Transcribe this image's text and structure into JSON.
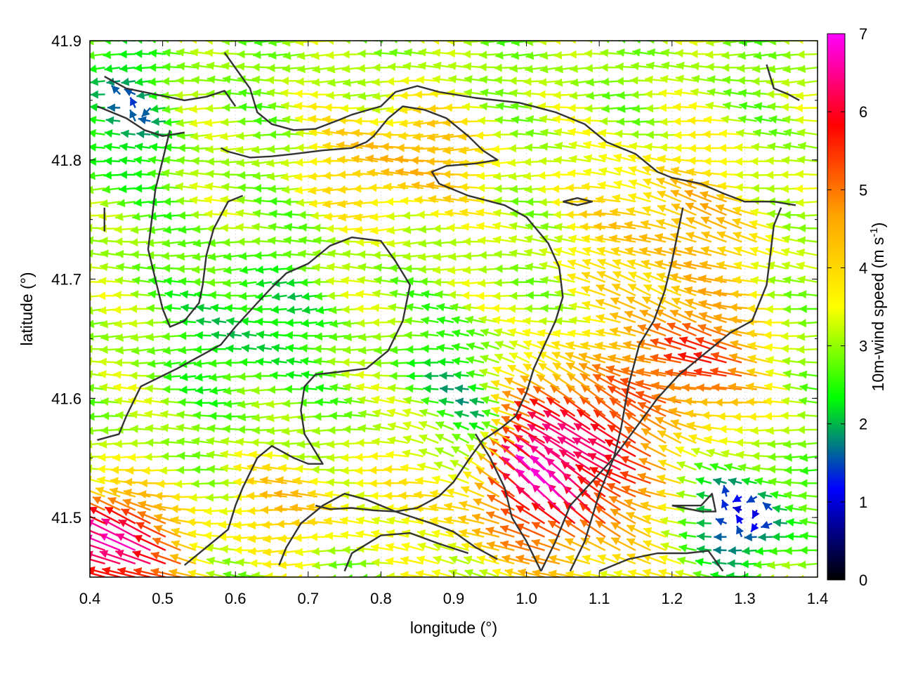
{
  "chart_data": {
    "type": "vector-field",
    "xlabel": "longitude (°)",
    "ylabel": "latitude (°)",
    "xlim": [
      0.4,
      1.4
    ],
    "ylim": [
      41.45,
      41.9
    ],
    "xticks": [
      "0.4",
      "0.5",
      "0.6",
      "0.7",
      "0.8",
      "0.9",
      "1.0",
      "1.1",
      "1.2",
      "1.3",
      "1.4"
    ],
    "yticks": [
      "41.5",
      "41.6",
      "41.7",
      "41.8",
      "41.9"
    ],
    "grid": true,
    "colorbar": {
      "label_main": "10m-wind speed (m s",
      "label_sup": "-1",
      "label_end": ")",
      "range": [
        0,
        7
      ],
      "ticks": [
        "0",
        "1",
        "2",
        "3",
        "4",
        "5",
        "6",
        "7"
      ],
      "colors": [
        "#000000",
        "#0000ff",
        "#00ff00",
        "#ffff00",
        "#ffa500",
        "#ff0000",
        "#ff00ff"
      ]
    },
    "contour_color": "#333333",
    "contours": [
      [
        [
          0.42,
          41.87
        ],
        [
          0.45,
          41.86
        ],
        [
          0.49,
          41.855
        ],
        [
          0.53,
          41.85
        ],
        [
          0.56,
          41.853
        ],
        [
          0.585,
          41.858
        ],
        [
          0.6,
          41.845
        ]
      ],
      [
        [
          0.41,
          41.845
        ],
        [
          0.45,
          41.835
        ],
        [
          0.475,
          41.825
        ],
        [
          0.5,
          41.82
        ],
        [
          0.53,
          41.823
        ]
      ],
      [
        [
          0.585,
          41.89
        ],
        [
          0.62,
          41.86
        ],
        [
          0.63,
          41.84
        ],
        [
          0.65,
          41.83
        ],
        [
          0.68,
          41.825
        ],
        [
          0.71,
          41.826
        ],
        [
          0.74,
          41.833
        ],
        [
          0.76,
          41.838
        ],
        [
          0.8,
          41.845
        ],
        [
          0.82,
          41.857
        ],
        [
          0.85,
          41.862
        ],
        [
          0.88,
          41.857
        ],
        [
          0.93,
          41.852
        ],
        [
          0.99,
          41.848
        ],
        [
          1.04,
          41.84
        ],
        [
          1.08,
          41.83
        ],
        [
          1.11,
          41.815
        ],
        [
          1.15,
          41.805
        ],
        [
          1.18,
          41.79
        ],
        [
          1.2,
          41.785
        ],
        [
          1.24,
          41.78
        ],
        [
          1.27,
          41.772
        ],
        [
          1.3,
          41.765
        ],
        [
          1.34,
          41.765
        ],
        [
          1.37,
          41.762
        ]
      ],
      [
        [
          0.58,
          41.81
        ],
        [
          0.59,
          41.807
        ],
        [
          0.62,
          41.802
        ],
        [
          0.65,
          41.803
        ],
        [
          0.68,
          41.805
        ],
        [
          0.72,
          41.808
        ],
        [
          0.76,
          41.81
        ],
        [
          0.78,
          41.815
        ],
        [
          0.79,
          41.82
        ],
        [
          0.81,
          41.835
        ],
        [
          0.83,
          41.845
        ],
        [
          0.86,
          41.842
        ],
        [
          0.89,
          41.835
        ],
        [
          0.92,
          41.82
        ],
        [
          0.94,
          41.808
        ],
        [
          0.96,
          41.8
        ],
        [
          0.93,
          41.797
        ],
        [
          0.89,
          41.795
        ],
        [
          0.87,
          41.79
        ],
        [
          0.88,
          41.78
        ],
        [
          0.92,
          41.77
        ],
        [
          0.97,
          41.762
        ],
        [
          1.0,
          41.752
        ],
        [
          1.03,
          41.73
        ],
        [
          1.045,
          41.71
        ],
        [
          1.05,
          41.685
        ],
        [
          1.04,
          41.665
        ],
        [
          1.025,
          41.645
        ],
        [
          1.01,
          41.625
        ],
        [
          1.0,
          41.605
        ],
        [
          0.985,
          41.585
        ],
        [
          0.965,
          41.575
        ],
        [
          0.94,
          41.565
        ],
        [
          0.92,
          41.548
        ],
        [
          0.9,
          41.53
        ],
        [
          0.88,
          41.518
        ],
        [
          0.85,
          41.508
        ],
        [
          0.82,
          41.505
        ],
        [
          0.79,
          41.506
        ],
        [
          0.76,
          41.508
        ],
        [
          0.73,
          41.507
        ],
        [
          0.71,
          41.51
        ]
      ],
      [
        [
          0.61,
          41.77
        ],
        [
          0.59,
          41.765
        ],
        [
          0.57,
          41.742
        ],
        [
          0.56,
          41.72
        ],
        [
          0.555,
          41.695
        ],
        [
          0.55,
          41.68
        ],
        [
          0.53,
          41.665
        ],
        [
          0.51,
          41.66
        ],
        [
          0.5,
          41.675
        ],
        [
          0.49,
          41.7
        ],
        [
          0.48,
          41.725
        ],
        [
          0.485,
          41.75
        ],
        [
          0.49,
          41.775
        ],
        [
          0.5,
          41.8
        ],
        [
          0.51,
          41.825
        ]
      ],
      [
        [
          0.41,
          41.565
        ],
        [
          0.44,
          41.57
        ],
        [
          0.45,
          41.585
        ],
        [
          0.47,
          41.61
        ],
        [
          0.52,
          41.625
        ],
        [
          0.55,
          41.635
        ],
        [
          0.58,
          41.645
        ],
        [
          0.6,
          41.66
        ],
        [
          0.63,
          41.68
        ],
        [
          0.65,
          41.693
        ],
        [
          0.67,
          41.705
        ],
        [
          0.7,
          41.713
        ],
        [
          0.73,
          41.728
        ],
        [
          0.76,
          41.735
        ],
        [
          0.8,
          41.732
        ],
        [
          0.82,
          41.715
        ],
        [
          0.84,
          41.695
        ],
        [
          0.83,
          41.665
        ],
        [
          0.81,
          41.64
        ],
        [
          0.78,
          41.625
        ],
        [
          0.74,
          41.622
        ],
        [
          0.71,
          41.62
        ],
        [
          0.695,
          41.61
        ],
        [
          0.69,
          41.59
        ],
        [
          0.695,
          41.57
        ],
        [
          0.71,
          41.555
        ],
        [
          0.72,
          41.545
        ],
        [
          0.7,
          41.545
        ],
        [
          0.68,
          41.55
        ],
        [
          0.65,
          41.56
        ],
        [
          0.63,
          41.55
        ],
        [
          0.61,
          41.525
        ],
        [
          0.6,
          41.51
        ],
        [
          0.59,
          41.49
        ],
        [
          0.56,
          41.475
        ],
        [
          0.53,
          41.46
        ]
      ],
      [
        [
          0.66,
          41.46
        ],
        [
          0.67,
          41.475
        ],
        [
          0.69,
          41.495
        ],
        [
          0.72,
          41.51
        ],
        [
          0.75,
          41.52
        ],
        [
          0.78,
          41.515
        ],
        [
          0.82,
          41.505
        ],
        [
          0.87,
          41.495
        ],
        [
          0.9,
          41.488
        ],
        [
          0.93,
          41.475
        ],
        [
          0.96,
          41.465
        ]
      ],
      [
        [
          0.75,
          41.455
        ],
        [
          0.76,
          41.47
        ],
        [
          0.8,
          41.485
        ],
        [
          0.84,
          41.487
        ],
        [
          0.88,
          41.478
        ],
        [
          0.92,
          41.47
        ]
      ],
      [
        [
          1.02,
          41.455
        ],
        [
          1.04,
          41.48
        ],
        [
          1.06,
          41.51
        ],
        [
          1.09,
          41.53
        ],
        [
          1.12,
          41.55
        ],
        [
          1.15,
          41.575
        ],
        [
          1.18,
          41.6
        ],
        [
          1.21,
          41.62
        ],
        [
          1.25,
          41.64
        ],
        [
          1.28,
          41.655
        ],
        [
          1.31,
          41.665
        ],
        [
          1.32,
          41.68
        ],
        [
          1.33,
          41.695
        ],
        [
          1.335,
          41.72
        ],
        [
          1.34,
          41.745
        ],
        [
          1.35,
          41.76
        ]
      ],
      [
        [
          1.06,
          41.455
        ],
        [
          1.08,
          41.48
        ],
        [
          1.1,
          41.52
        ],
        [
          1.12,
          41.55
        ],
        [
          1.13,
          41.575
        ],
        [
          1.14,
          41.61
        ],
        [
          1.155,
          41.645
        ],
        [
          1.175,
          41.665
        ],
        [
          1.19,
          41.69
        ],
        [
          1.2,
          41.715
        ],
        [
          1.21,
          41.745
        ],
        [
          1.215,
          41.76
        ]
      ],
      [
        [
          1.02,
          41.455
        ],
        [
          1.0,
          41.48
        ],
        [
          0.98,
          41.5
        ],
        [
          0.97,
          41.525
        ],
        [
          0.95,
          41.55
        ],
        [
          0.93,
          41.57
        ]
      ],
      [
        [
          1.05,
          41.765
        ],
        [
          1.07,
          41.762
        ],
        [
          1.09,
          41.765
        ],
        [
          1.07,
          41.768
        ],
        [
          1.05,
          41.765
        ]
      ],
      [
        [
          1.2,
          41.51
        ],
        [
          1.24,
          41.51
        ],
        [
          1.255,
          41.52
        ],
        [
          1.26,
          41.505
        ],
        [
          1.24,
          41.505
        ],
        [
          1.2,
          41.51
        ]
      ],
      [
        [
          1.1,
          41.455
        ],
        [
          1.14,
          41.465
        ],
        [
          1.18,
          41.47
        ],
        [
          1.22,
          41.47
        ],
        [
          1.25,
          41.472
        ],
        [
          1.27,
          41.455
        ]
      ],
      [
        [
          1.33,
          41.88
        ],
        [
          1.34,
          41.86
        ],
        [
          1.36,
          41.855
        ],
        [
          1.375,
          41.85
        ]
      ],
      [
        [
          0.42,
          41.76
        ],
        [
          0.42,
          41.74
        ]
      ]
    ]
  }
}
